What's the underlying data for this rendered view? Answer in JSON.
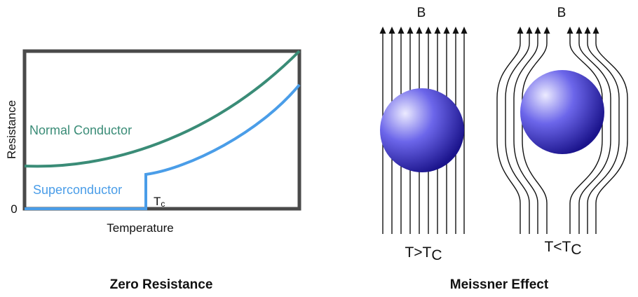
{
  "left_panel": {
    "caption": "Zero Resistance",
    "y_axis_label": "Resistance",
    "x_axis_label": "Temperature",
    "zero_label": "0",
    "normal_label": "Normal Conductor",
    "super_label": "Superconductor",
    "tc_label": "T",
    "tc_sub": "c",
    "colors": {
      "normal": "#3a8c77",
      "super": "#4a9de8",
      "frame": "#4a4a4a"
    }
  },
  "right_panel": {
    "caption": "Meissner Effect",
    "field_label_left": "B",
    "field_label_right": "B",
    "state_left": "T>T",
    "state_left_sub": "C",
    "state_right": "T<T",
    "state_right_sub": "C",
    "colors": {
      "sphere_center": "#e8e6ff",
      "sphere_mid": "#6a62e6",
      "sphere_edge": "#1e178f",
      "field_lines": "#111111"
    }
  }
}
